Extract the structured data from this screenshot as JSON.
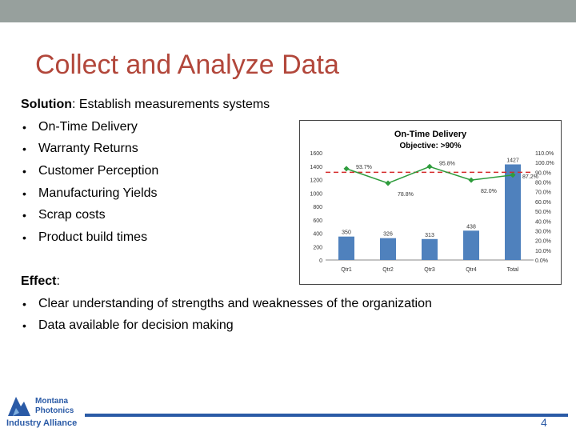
{
  "slide": {
    "title": "Collect and Analyze Data",
    "solution_label": "Solution",
    "solution_text": ": Establish measurements systems",
    "bullets": [
      "On-Time Delivery",
      "Warranty Returns",
      "Customer Perception",
      "Manufacturing Yields",
      "Scrap costs",
      "Product build times"
    ],
    "effect_label": "Effect",
    "effect_colon": ":",
    "effect_bullets": [
      "Clear understanding of strengths and weaknesses of the organization",
      "Data available for decision making"
    ],
    "bullet_char": "•",
    "page_number": "4"
  },
  "logo": {
    "line1": "Montana",
    "line2": "Photonics",
    "line3": "Industry Alliance"
  },
  "colors": {
    "title": "#b2473b",
    "bar": "#4f81bd",
    "line": "#2e9c3c",
    "objective": "#d52b2b",
    "accent": "#2a5aa6"
  },
  "chart_data": {
    "type": "bar",
    "title": "On-Time Delivery",
    "subtitle": "Objective: >90%",
    "categories": [
      "Qtr1",
      "Qtr2",
      "Qtr3",
      "Qtr4",
      "Total"
    ],
    "series": [
      {
        "values": [
          350,
          326,
          313,
          438,
          1427
        ],
        "labels": [
          "350",
          "326",
          "313",
          "438",
          "1427"
        ]
      },
      {
        "values": [
          93.7,
          78.8,
          95.8,
          82.0,
          87.2
        ],
        "labels": [
          "93.7%",
          "78.8%",
          "95.8%",
          "82.0%",
          "87.2%"
        ]
      }
    ],
    "objective": 90,
    "y_left_ticks": [
      "1600",
      "1400",
      "1200",
      "1000",
      "800",
      "600",
      "400",
      "200",
      "0"
    ],
    "y_right_ticks": [
      "110.0%",
      "100.0%",
      "90.0%",
      "80.0%",
      "70.0%",
      "60.0%",
      "50.0%",
      "40.0%",
      "30.0%",
      "20.0%",
      "10.0%",
      "0.0%"
    ],
    "ylim_left": [
      0,
      1600
    ],
    "ylim_right": [
      0,
      110
    ],
    "grid": false
  }
}
